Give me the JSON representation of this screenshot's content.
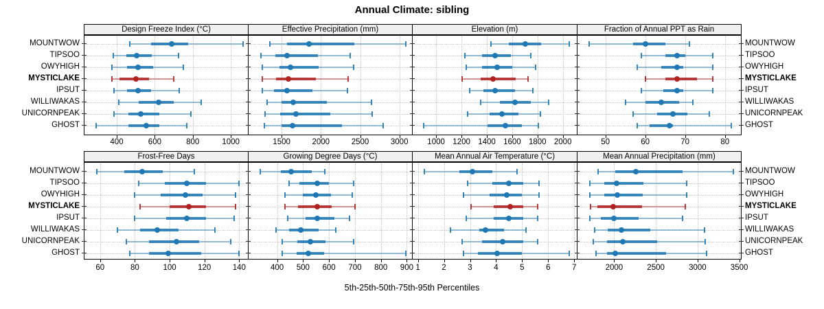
{
  "title": "Annual Climate: sibling",
  "footer": "5th-25th-50th-75th-95th Percentiles",
  "sites": [
    "MOUNTWOW",
    "TIPSOO",
    "OWYHIGH",
    "MYSTICLAKE",
    "IPSUT",
    "WILLIWAKAS",
    "UNICORNPEAK",
    "GHOST"
  ],
  "highlight_site": "MYSTICLAKE",
  "percentile_labels": [
    "5th",
    "25th",
    "50th",
    "75th",
    "95th"
  ],
  "colors": {
    "series": "#1f78b4",
    "highlight": "#b22222",
    "grid": "#c3c3c3",
    "strip_bg": "#f0f0f0",
    "border": "#000000"
  },
  "chart_data": [
    {
      "type": "dotplot-interval",
      "title": "Design Freeze Index (°C)",
      "xlim": [
        230,
        1090
      ],
      "ticks": [
        400,
        600,
        800,
        1000
      ],
      "series": [
        {
          "site": "MOUNTWOW",
          "p": [
            470,
            580,
            690,
            775,
            1065
          ]
        },
        {
          "site": "TIPSOO",
          "p": [
            380,
            450,
            505,
            585,
            725
          ]
        },
        {
          "site": "OWYHIGH",
          "p": [
            375,
            455,
            510,
            590,
            750
          ]
        },
        {
          "site": "MYSTICLAKE",
          "p": [
            375,
            415,
            500,
            570,
            700
          ]
        },
        {
          "site": "IPSUT",
          "p": [
            385,
            455,
            510,
            580,
            730
          ]
        },
        {
          "site": "WILLIWAKAS",
          "p": [
            410,
            515,
            620,
            700,
            845
          ]
        },
        {
          "site": "UNICORNPEAK",
          "p": [
            385,
            460,
            525,
            625,
            790
          ]
        },
        {
          "site": "GHOST",
          "p": [
            290,
            460,
            555,
            625,
            770
          ]
        }
      ]
    },
    {
      "type": "dotplot-interval",
      "title": "Effective Precipitation (mm)",
      "xlim": [
        1080,
        3160
      ],
      "ticks": [
        1500,
        2000,
        2500,
        3000
      ],
      "series": [
        {
          "site": "MOUNTWOW",
          "p": [
            1350,
            1570,
            1845,
            2430,
            3080
          ]
        },
        {
          "site": "TIPSOO",
          "p": [
            1235,
            1420,
            1570,
            1965,
            2375
          ]
        },
        {
          "site": "OWYHIGH",
          "p": [
            1250,
            1470,
            1615,
            1975,
            2420
          ]
        },
        {
          "site": "MYSTICLAKE",
          "p": [
            1255,
            1430,
            1585,
            1940,
            2350
          ]
        },
        {
          "site": "IPSUT",
          "p": [
            1250,
            1400,
            1565,
            1890,
            2340
          ]
        },
        {
          "site": "WILLIWAKAS",
          "p": [
            1315,
            1495,
            1650,
            2075,
            2640
          ]
        },
        {
          "site": "UNICORNPEAK",
          "p": [
            1290,
            1480,
            1680,
            2120,
            2650
          ]
        },
        {
          "site": "GHOST",
          "p": [
            1280,
            1495,
            1640,
            2270,
            2790
          ]
        }
      ]
    },
    {
      "type": "dotplot-interval",
      "title": "Elevation (m)",
      "xlim": [
        815,
        2110
      ],
      "ticks": [
        1000,
        1200,
        1400,
        1600,
        1800,
        2000
      ],
      "series": [
        {
          "site": "MOUNTWOW",
          "p": [
            1430,
            1575,
            1705,
            1830,
            2050
          ]
        },
        {
          "site": "TIPSOO",
          "p": [
            1225,
            1360,
            1465,
            1590,
            1745
          ]
        },
        {
          "site": "OWYHIGH",
          "p": [
            1240,
            1360,
            1480,
            1600,
            1785
          ]
        },
        {
          "site": "MYSTICLAKE",
          "p": [
            1205,
            1350,
            1450,
            1630,
            1725
          ]
        },
        {
          "site": "IPSUT",
          "p": [
            1265,
            1375,
            1465,
            1625,
            1765
          ]
        },
        {
          "site": "WILLIWAKAS",
          "p": [
            1350,
            1505,
            1620,
            1750,
            1885
          ]
        },
        {
          "site": "UNICORNPEAK",
          "p": [
            1250,
            1420,
            1520,
            1650,
            1820
          ]
        },
        {
          "site": "GHOST",
          "p": [
            900,
            1405,
            1545,
            1675,
            1805
          ]
        }
      ]
    },
    {
      "type": "dotplot-interval",
      "title": "Fraction of Annual PPT as Rain",
      "xlim": [
        43,
        84
      ],
      "ticks": [
        50,
        60,
        70,
        80
      ],
      "series": [
        {
          "site": "MOUNTWOW",
          "p": [
            46,
            57,
            60,
            65,
            71
          ]
        },
        {
          "site": "TIPSOO",
          "p": [
            59,
            65,
            68,
            70,
            77
          ]
        },
        {
          "site": "OWYHIGH",
          "p": [
            58,
            64,
            68,
            69.5,
            77
          ]
        },
        {
          "site": "MYSTICLAKE",
          "p": [
            60,
            65,
            68,
            73,
            77
          ]
        },
        {
          "site": "IPSUT",
          "p": [
            59,
            64.5,
            68,
            69.5,
            77
          ]
        },
        {
          "site": "WILLIWAKAS",
          "p": [
            55,
            60,
            64,
            68.5,
            72
          ]
        },
        {
          "site": "UNICORNPEAK",
          "p": [
            57,
            63,
            67,
            70.5,
            76
          ]
        },
        {
          "site": "GHOST",
          "p": [
            58,
            61,
            66,
            67,
            81.5
          ]
        }
      ]
    },
    {
      "type": "dotplot-interval",
      "title": "Frost-Free Days",
      "xlim": [
        51,
        145
      ],
      "ticks": [
        60,
        80,
        100,
        120,
        140
      ],
      "series": [
        {
          "site": "MOUNTWOW",
          "p": [
            58,
            74,
            84,
            96,
            114
          ]
        },
        {
          "site": "TIPSOO",
          "p": [
            82,
            97,
            110,
            121,
            140
          ]
        },
        {
          "site": "OWYHIGH",
          "p": [
            80,
            95,
            109,
            119,
            138
          ]
        },
        {
          "site": "MYSTICLAKE",
          "p": [
            83,
            100,
            111,
            121,
            138
          ]
        },
        {
          "site": "IPSUT",
          "p": [
            80,
            98,
            110,
            121,
            137
          ]
        },
        {
          "site": "WILLIWAKAS",
          "p": [
            70,
            83,
            93,
            105,
            126
          ]
        },
        {
          "site": "UNICORNPEAK",
          "p": [
            75,
            88,
            104,
            117,
            135
          ]
        },
        {
          "site": "GHOST",
          "p": [
            77,
            88,
            99,
            118,
            140
          ]
        }
      ]
    },
    {
      "type": "dotplot-interval",
      "title": "Growing Degree Days (°C)",
      "xlim": [
        290,
        920
      ],
      "ticks": [
        400,
        500,
        600,
        700,
        800,
        900
      ],
      "series": [
        {
          "site": "MOUNTWOW",
          "p": [
            335,
            415,
            455,
            535,
            585
          ]
        },
        {
          "site": "TIPSOO",
          "p": [
            445,
            485,
            555,
            600,
            695
          ]
        },
        {
          "site": "OWYHIGH",
          "p": [
            430,
            500,
            550,
            608,
            690
          ]
        },
        {
          "site": "MYSTICLAKE",
          "p": [
            430,
            480,
            555,
            610,
            700
          ]
        },
        {
          "site": "IPSUT",
          "p": [
            440,
            510,
            555,
            620,
            680
          ]
        },
        {
          "site": "WILLIWAKAS",
          "p": [
            395,
            445,
            490,
            560,
            625
          ]
        },
        {
          "site": "UNICORNPEAK",
          "p": [
            420,
            477,
            528,
            586,
            694
          ]
        },
        {
          "site": "GHOST",
          "p": [
            420,
            475,
            520,
            580,
            895
          ]
        }
      ]
    },
    {
      "type": "dotplot-interval",
      "title": "Mean Annual Air Temperature (°C)",
      "xlim": [
        0.8,
        7.1
      ],
      "ticks": [
        1,
        2,
        3,
        4,
        5,
        6,
        7
      ],
      "series": [
        {
          "site": "MOUNTWOW",
          "p": [
            1.25,
            2.6,
            3.1,
            3.85,
            4.8
          ]
        },
        {
          "site": "TIPSOO",
          "p": [
            2.9,
            3.85,
            4.5,
            5.05,
            5.65
          ]
        },
        {
          "site": "OWYHIGH",
          "p": [
            2.75,
            3.75,
            4.4,
            5.0,
            5.65
          ]
        },
        {
          "site": "MYSTICLAKE",
          "p": [
            3.05,
            3.9,
            4.55,
            5.05,
            5.6
          ]
        },
        {
          "site": "IPSUT",
          "p": [
            2.85,
            3.9,
            4.5,
            5.05,
            5.6
          ]
        },
        {
          "site": "WILLIWAKAS",
          "p": [
            2.25,
            3.35,
            3.6,
            4.3,
            5.15
          ]
        },
        {
          "site": "UNICORNPEAK",
          "p": [
            2.7,
            3.45,
            4.25,
            5.05,
            5.6
          ]
        },
        {
          "site": "GHOST",
          "p": [
            2.75,
            3.3,
            4.05,
            5.0,
            6.8
          ]
        }
      ]
    },
    {
      "type": "dotplot-interval",
      "title": "Mean Annual Precipitation (mm)",
      "xlim": [
        1560,
        3520
      ],
      "ticks": [
        2000,
        2500,
        3000,
        3500
      ],
      "series": [
        {
          "site": "MOUNTWOW",
          "p": [
            1810,
            2015,
            2260,
            2820,
            3430
          ]
        },
        {
          "site": "TIPSOO",
          "p": [
            1710,
            1880,
            2030,
            2350,
            2865
          ]
        },
        {
          "site": "OWYHIGH",
          "p": [
            1705,
            1880,
            2040,
            2345,
            2870
          ]
        },
        {
          "site": "MYSTICLAKE",
          "p": [
            1715,
            1795,
            1990,
            2335,
            2850
          ]
        },
        {
          "site": "IPSUT",
          "p": [
            1705,
            1840,
            2000,
            2290,
            2820
          ]
        },
        {
          "site": "WILLIWAKAS",
          "p": [
            1765,
            1925,
            2090,
            2430,
            3085
          ]
        },
        {
          "site": "UNICORNPEAK",
          "p": [
            1750,
            1915,
            2100,
            2515,
            3090
          ]
        },
        {
          "site": "GHOST",
          "p": [
            1785,
            1910,
            2015,
            2625,
            3105
          ]
        }
      ]
    }
  ]
}
